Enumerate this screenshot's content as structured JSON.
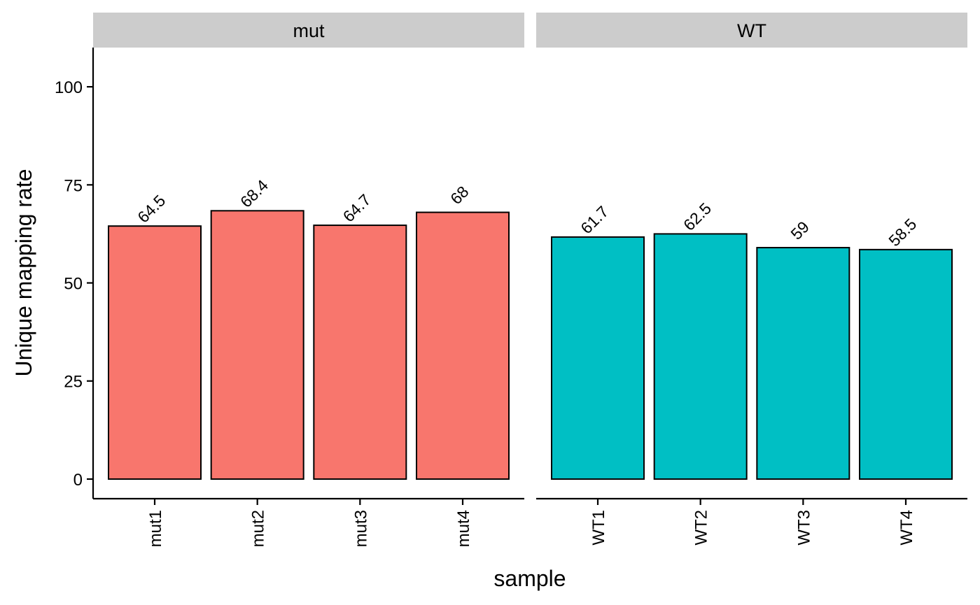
{
  "chart_data": {
    "type": "bar",
    "ylabel": "Unique mapping rate",
    "xlabel": "sample",
    "ylim": [
      -5,
      110
    ],
    "yticks": [
      0,
      25,
      50,
      75,
      100
    ],
    "grid": false,
    "facets": [
      {
        "name": "mut",
        "color": "#F8766D",
        "categories": [
          "mut1",
          "mut2",
          "mut3",
          "mut4"
        ],
        "values": [
          64.5,
          68.4,
          64.7,
          68
        ],
        "labels": [
          "64.5",
          "68.4",
          "64.7",
          "68"
        ]
      },
      {
        "name": "WT",
        "color": "#00BFC4",
        "categories": [
          "WT1",
          "WT2",
          "WT3",
          "WT4"
        ],
        "values": [
          61.7,
          62.5,
          59,
          58.5
        ],
        "labels": [
          "61.7",
          "62.5",
          "59",
          "58.5"
        ]
      }
    ]
  }
}
